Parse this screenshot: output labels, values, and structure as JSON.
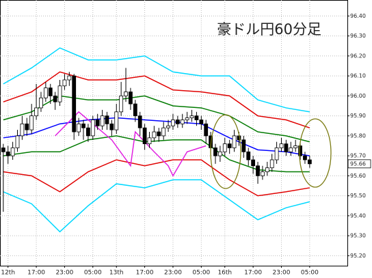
{
  "chart_data": {
    "type": "candlestick",
    "title": "豪ドル円60分足",
    "open": [
      95.74,
      95.72,
      95.7,
      95.74,
      95.8,
      95.86,
      95.83,
      95.9,
      95.94,
      95.99,
      96.04,
      96.0,
      95.97,
      96.05,
      96.08,
      96.1,
      95.82,
      95.86,
      95.84,
      95.8,
      95.88,
      95.85,
      95.9,
      95.86,
      95.83,
      95.92,
      96.0,
      96.02,
      95.96,
      95.9,
      95.84,
      95.76,
      95.79,
      95.82,
      95.8,
      95.84,
      95.85,
      95.88,
      95.86,
      95.88,
      95.89,
      95.9,
      95.88,
      95.86,
      95.8,
      95.74,
      95.7,
      95.72,
      95.76,
      95.74,
      95.8,
      95.78,
      95.72,
      95.68,
      95.65,
      95.6,
      95.62,
      95.64,
      95.68,
      95.74,
      95.76,
      95.72,
      95.74,
      95.75,
      95.7,
      95.68
    ],
    "high": [
      95.76,
      95.75,
      95.77,
      95.83,
      95.9,
      95.89,
      95.96,
      96.06,
      96.02,
      96.07,
      96.06,
      96.02,
      96.08,
      96.11,
      96.12,
      96.11,
      95.89,
      95.88,
      95.86,
      95.9,
      95.91,
      95.93,
      95.92,
      95.88,
      95.96,
      96.07,
      96.14,
      96.04,
      95.98,
      95.92,
      95.86,
      95.82,
      95.85,
      95.84,
      95.87,
      95.88,
      95.91,
      95.9,
      95.91,
      95.92,
      95.93,
      95.92,
      95.9,
      95.88,
      95.82,
      95.76,
      95.75,
      95.79,
      95.78,
      95.83,
      95.82,
      95.8,
      95.74,
      95.7,
      95.67,
      95.65,
      95.67,
      95.71,
      95.77,
      95.79,
      95.78,
      95.77,
      95.78,
      95.77,
      95.72,
      95.7
    ],
    "low": [
      95.42,
      95.66,
      95.68,
      95.72,
      95.78,
      95.8,
      95.81,
      95.88,
      95.92,
      95.97,
      95.96,
      95.93,
      95.95,
      96.03,
      96.05,
      95.78,
      95.8,
      95.78,
      95.77,
      95.78,
      95.83,
      95.83,
      95.83,
      95.8,
      95.81,
      95.9,
      95.97,
      95.93,
      95.87,
      95.8,
      95.73,
      95.74,
      95.77,
      95.77,
      95.78,
      95.82,
      95.83,
      95.84,
      95.84,
      95.86,
      95.87,
      95.85,
      95.83,
      95.76,
      95.7,
      95.66,
      95.67,
      95.7,
      95.71,
      95.72,
      95.75,
      95.69,
      95.65,
      95.61,
      95.56,
      95.58,
      95.6,
      95.62,
      95.66,
      95.72,
      95.7,
      95.7,
      95.72,
      95.68,
      95.66,
      95.64
    ],
    "close": [
      95.72,
      95.7,
      95.74,
      95.8,
      95.86,
      95.83,
      95.9,
      95.94,
      95.99,
      96.04,
      96.0,
      95.97,
      96.05,
      96.08,
      96.1,
      95.82,
      95.86,
      95.84,
      95.8,
      95.88,
      95.85,
      95.9,
      95.86,
      95.83,
      95.92,
      96.0,
      96.02,
      95.96,
      95.9,
      95.84,
      95.76,
      95.79,
      95.82,
      95.8,
      95.84,
      95.85,
      95.88,
      95.86,
      95.88,
      95.89,
      95.9,
      95.88,
      95.86,
      95.8,
      95.74,
      95.7,
      95.72,
      95.76,
      95.74,
      95.8,
      95.78,
      95.72,
      95.68,
      95.65,
      95.6,
      95.62,
      95.64,
      95.68,
      95.74,
      95.76,
      95.72,
      95.74,
      95.75,
      95.7,
      95.68,
      95.66
    ],
    "lines": [
      {
        "color": "#00d8ff",
        "x": [
          0,
          6,
          12,
          18,
          24,
          30,
          36,
          42,
          48,
          54,
          60,
          65
        ],
        "values": [
          96.06,
          96.14,
          96.24,
          96.18,
          96.18,
          96.2,
          96.12,
          96.1,
          96.1,
          95.98,
          95.94,
          95.92
        ]
      },
      {
        "color": "#e00000",
        "x": [
          0,
          6,
          12,
          18,
          24,
          30,
          36,
          42,
          48,
          54,
          60,
          65
        ],
        "values": [
          95.97,
          96.02,
          96.12,
          96.08,
          96.08,
          96.1,
          96.03,
          96.02,
          96.0,
          95.9,
          95.88,
          95.84
        ]
      },
      {
        "color": "#007a00",
        "x": [
          0,
          6,
          12,
          18,
          24,
          30,
          36,
          42,
          48,
          54,
          60,
          65
        ],
        "values": [
          95.88,
          95.92,
          96.0,
          95.98,
          95.98,
          96.0,
          95.95,
          95.94,
          95.9,
          95.82,
          95.8,
          95.77
        ]
      },
      {
        "color": "#0000ff",
        "x": [
          0,
          6,
          12,
          18,
          24,
          30,
          36,
          42,
          48,
          54,
          60,
          65
        ],
        "values": [
          95.79,
          95.81,
          95.86,
          95.88,
          95.89,
          95.88,
          95.87,
          95.86,
          95.79,
          95.73,
          95.72,
          95.7
        ]
      },
      {
        "color": "#007a00",
        "x": [
          0,
          6,
          12,
          18,
          24,
          30,
          36,
          42,
          48,
          54,
          60,
          65
        ],
        "values": [
          95.7,
          95.72,
          95.72,
          95.78,
          95.8,
          95.77,
          95.78,
          95.78,
          95.68,
          95.63,
          95.62,
          95.62
        ]
      },
      {
        "color": "#e00000",
        "x": [
          0,
          6,
          12,
          18,
          24,
          30,
          36,
          42,
          48,
          54,
          60,
          65
        ],
        "values": [
          95.62,
          95.6,
          95.52,
          95.62,
          95.68,
          95.65,
          95.68,
          95.68,
          95.58,
          95.5,
          95.52,
          95.54
        ]
      },
      {
        "color": "#00d8ff",
        "x": [
          0,
          6,
          12,
          18,
          24,
          30,
          36,
          42,
          48,
          54,
          60,
          65
        ],
        "values": [
          95.52,
          95.46,
          95.32,
          95.45,
          95.56,
          95.54,
          95.58,
          95.58,
          95.48,
          95.38,
          95.44,
          95.47
        ]
      },
      {
        "color": "#e020e0",
        "x": [
          11,
          16,
          19,
          23,
          27,
          28,
          32,
          35,
          36,
          39,
          43
        ],
        "values": [
          95.8,
          95.92,
          95.86,
          95.78,
          95.65,
          95.82,
          95.72,
          95.65,
          95.6,
          95.72,
          95.75
        ]
      }
    ],
    "last_price": 95.66,
    "ylim": [
      95.15,
      96.48
    ],
    "yticks": [
      {
        "value": 96.4,
        "label": "96.40"
      },
      {
        "value": 96.3,
        "label": "96.30"
      },
      {
        "value": 96.2,
        "label": "96.20"
      },
      {
        "value": 96.1,
        "label": "96.10"
      },
      {
        "value": 96.0,
        "label": "96.00"
      },
      {
        "value": 95.9,
        "label": "95.90"
      },
      {
        "value": 95.8,
        "label": "95.80"
      },
      {
        "value": 95.7,
        "label": "95.70"
      },
      {
        "value": 95.6,
        "label": "95.60"
      },
      {
        "value": 95.5,
        "label": "95.50"
      },
      {
        "value": 95.4,
        "label": "95.40"
      },
      {
        "value": 95.3,
        "label": "95.30"
      },
      {
        "value": 95.2,
        "label": "95.20"
      }
    ],
    "xlim": [
      -0.7,
      73
    ],
    "xticks": [
      {
        "value": 1,
        "label": "12th"
      },
      {
        "value": 7,
        "label": "17:00"
      },
      {
        "value": 13,
        "label": "23:00"
      },
      {
        "value": 19,
        "label": "05:00"
      },
      {
        "value": 24,
        "label": "13th"
      },
      {
        "value": 30,
        "label": "17:00"
      },
      {
        "value": 36,
        "label": "23:00"
      },
      {
        "value": 42,
        "label": "05:00"
      },
      {
        "value": 47,
        "label": "16th"
      },
      {
        "value": 53,
        "label": "17:00"
      },
      {
        "value": 59,
        "label": "23:00"
      },
      {
        "value": 65,
        "label": "05:00"
      }
    ],
    "grid": true
  }
}
